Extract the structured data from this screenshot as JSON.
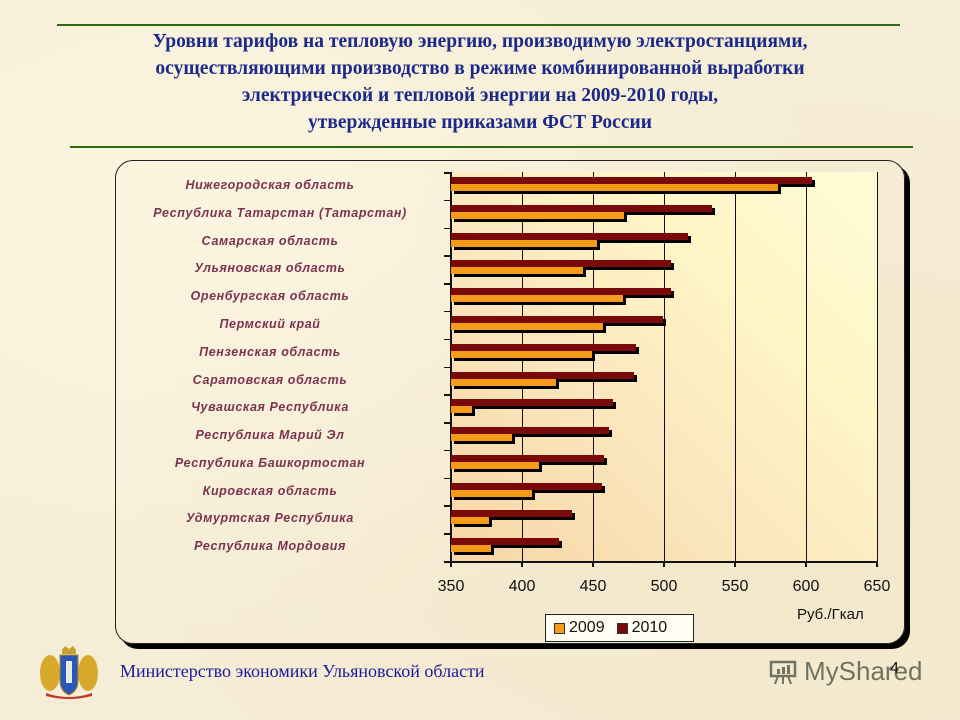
{
  "header": {
    "title_lines": [
      "Уровни  тарифов на тепловую энергию, производимую электростанциями,",
      "осуществляющими производство в режиме комбинированной выработки",
      "электрической и тепловой энергии на 2009-2010 годы,",
      "утвержденные приказами ФСТ России"
    ]
  },
  "chart_data": {
    "type": "bar",
    "orientation": "horizontal",
    "title": "Уровни тарифов на тепловую энергию, производимую электростанциями, осуществляющими производство в режиме комбинированной выработки электрической и тепловой энергии на 2009-2010 годы, утвержденные приказами ФСТ России",
    "xlabel": "Руб./Гкал",
    "ylabel": "",
    "xlim": [
      350,
      650
    ],
    "xticks": [
      350,
      400,
      450,
      500,
      550,
      600,
      650
    ],
    "grid": true,
    "legend_position": "bottom",
    "categories": [
      "Нижегородская область",
      "Республика Татарстан (Татарстан)",
      "Самарская область",
      "Ульяновская область",
      "Оренбургская область",
      "Пермский край",
      "Пензенская область",
      "Саратовская область",
      "Чувашская Республика",
      "Республика Марий Эл",
      "Республика Башкортостан",
      "Кировская область",
      "Удмуртская Республика",
      "Республика Мордовия"
    ],
    "series": [
      {
        "name": "2009",
        "color": "#f49b1a",
        "values": [
          580,
          472,
          453,
          443,
          471,
          457,
          449,
          424,
          365,
          393,
          412,
          407,
          377,
          378
        ]
      },
      {
        "name": "2010",
        "color": "#7a0a0a",
        "values": [
          604,
          534,
          517,
          505,
          505,
          499,
          480,
          479,
          464,
          461,
          458,
          456,
          435,
          426
        ]
      }
    ]
  },
  "legend": {
    "items": [
      {
        "label": "2009",
        "color": "#f49b1a"
      },
      {
        "label": "2010",
        "color": "#7a0a0a"
      }
    ]
  },
  "axis": {
    "unit": "Руб./Гкал",
    "ticks": [
      "350",
      "400",
      "450",
      "500",
      "550",
      "600",
      "650"
    ]
  },
  "footer": {
    "org": "Министерство  экономики Ульяновской области",
    "page": "4",
    "watermark": "MyShared"
  },
  "colors": {
    "title": "#1b2a8a",
    "rule": "#2e6b12",
    "category_label": "#7a3350",
    "footer": "#1a1a9a"
  }
}
